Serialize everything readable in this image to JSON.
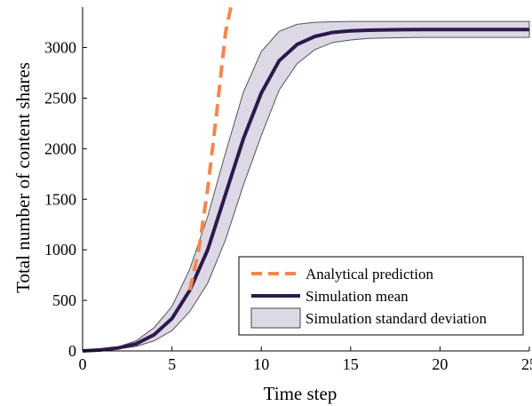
{
  "chart_data": {
    "type": "line",
    "xlabel": "Time step",
    "ylabel": "Total number of content shares",
    "xlim": [
      0,
      25
    ],
    "ylim": [
      0,
      3400
    ],
    "xticks": [
      "0",
      "5",
      "10",
      "15",
      "20",
      "25"
    ],
    "yticks": [
      "0",
      "500",
      "1000",
      "1500",
      "2000",
      "2500",
      "3000"
    ],
    "grid": false,
    "legend_position": "bottom-right",
    "series": [
      {
        "name": "Analytical prediction",
        "style": "dashed",
        "color": "#f4874e",
        "x": [
          6,
          6.5,
          7,
          7.5,
          8,
          8.3
        ],
        "y": [
          600,
          1000,
          1600,
          2350,
          3150,
          3400
        ]
      },
      {
        "name": "Simulation mean",
        "style": "solid",
        "color": "#2c1a4a",
        "x": [
          0,
          1,
          2,
          3,
          4,
          5,
          6,
          7,
          8,
          9,
          10,
          11,
          12,
          13,
          14,
          15,
          16,
          17,
          18,
          19,
          20,
          21,
          22,
          23,
          24,
          25
        ],
        "y": [
          0,
          10,
          30,
          70,
          160,
          320,
          600,
          1000,
          1550,
          2100,
          2550,
          2870,
          3030,
          3110,
          3150,
          3165,
          3172,
          3175,
          3177,
          3178,
          3178,
          3178,
          3178,
          3178,
          3178,
          3178
        ]
      },
      {
        "name": "Simulation standard deviation",
        "style": "band",
        "color": "#dcd8e6",
        "x": [
          0,
          1,
          2,
          3,
          4,
          5,
          6,
          7,
          8,
          9,
          10,
          11,
          12,
          13,
          14,
          15,
          16,
          17,
          18,
          19,
          20,
          21,
          22,
          23,
          24,
          25
        ],
        "upper": [
          0,
          15,
          40,
          100,
          230,
          440,
          810,
          1330,
          1960,
          2560,
          2960,
          3160,
          3230,
          3250,
          3255,
          3258,
          3258,
          3258,
          3258,
          3258,
          3258,
          3258,
          3258,
          3258,
          3258,
          3258
        ],
        "lower": [
          0,
          5,
          20,
          45,
          100,
          200,
          390,
          670,
          1100,
          1640,
          2130,
          2580,
          2840,
          2980,
          3050,
          3075,
          3090,
          3095,
          3098,
          3100,
          3100,
          3100,
          3100,
          3100,
          3100,
          3100
        ]
      }
    ]
  }
}
